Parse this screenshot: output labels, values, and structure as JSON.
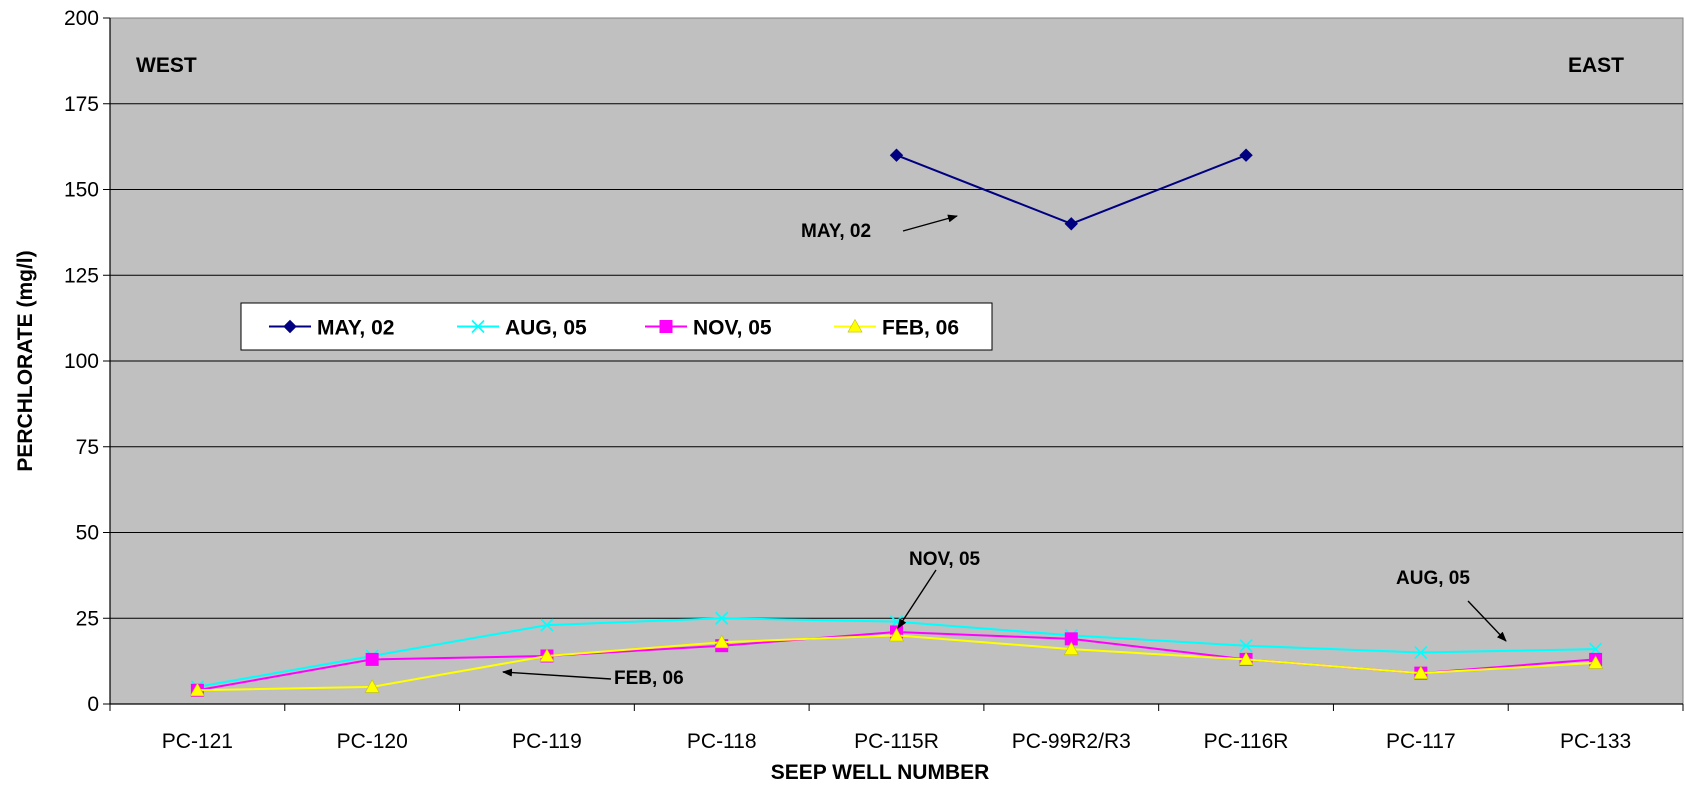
{
  "chart_data": {
    "type": "line",
    "title": "",
    "xlabel": "SEEP WELL NUMBER",
    "ylabel": "PERCHLORATE (mg/l)",
    "categories": [
      "PC-121",
      "PC-120",
      "PC-119",
      "PC-118",
      "PC-115R",
      "PC-99R2/R3",
      "PC-116R",
      "PC-117",
      "PC-133"
    ],
    "ylim": [
      0,
      200
    ],
    "yticks": [
      0,
      25,
      50,
      75,
      100,
      125,
      150,
      175,
      200
    ],
    "ytick_labels": [
      "0",
      "25",
      "50",
      "75",
      "100",
      "125",
      "150",
      "175",
      "200"
    ],
    "grid": "horizontal",
    "plot_background": "#c0c0c0",
    "legend_placement": "inside, upper-left",
    "series": [
      {
        "name": "MAY, 02",
        "marker": "diamond",
        "color": "#000080",
        "values": [
          null,
          null,
          null,
          null,
          160,
          140,
          160,
          null,
          null
        ]
      },
      {
        "name": "AUG, 05",
        "marker": "x",
        "color": "#00ffff",
        "values": [
          5,
          14,
          23,
          25,
          24,
          20,
          17,
          15,
          16
        ]
      },
      {
        "name": "NOV, 05",
        "marker": "square",
        "color": "#ff00ff",
        "values": [
          4,
          13,
          14,
          17,
          21,
          19,
          13,
          9,
          13
        ]
      },
      {
        "name": "FEB, 06",
        "marker": "triangle",
        "color": "#ffff00",
        "values": [
          4,
          5,
          14,
          18,
          20,
          16,
          13,
          9,
          12
        ]
      }
    ],
    "annotations": {
      "west": "WEST",
      "east": "EAST",
      "may02": "MAY, 02",
      "nov05": "NOV, 05",
      "aug05": "AUG, 05",
      "feb06": "FEB, 06"
    }
  }
}
